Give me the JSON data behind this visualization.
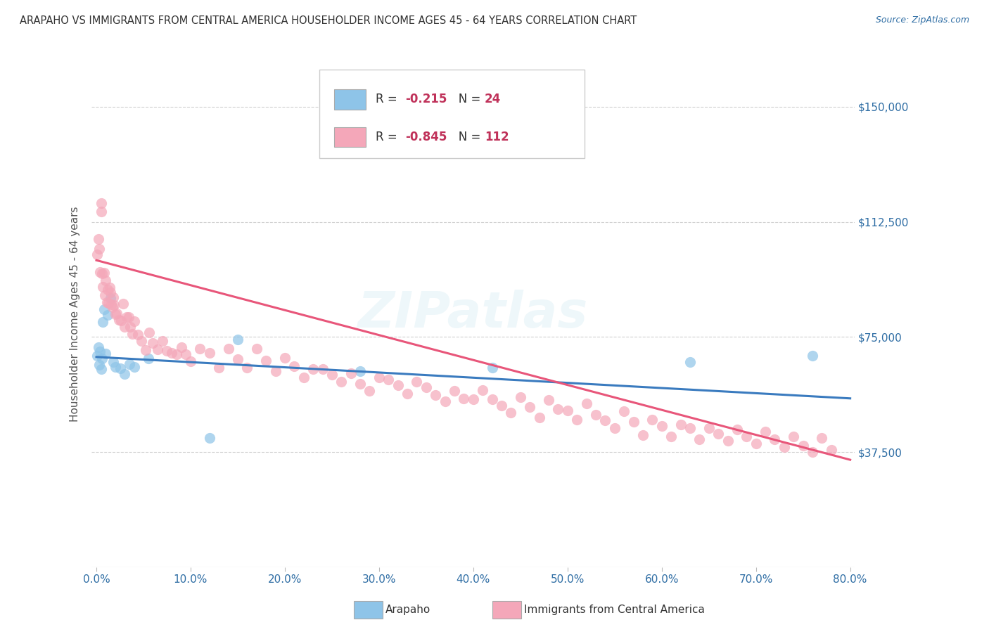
{
  "title": "ARAPAHO VS IMMIGRANTS FROM CENTRAL AMERICA HOUSEHOLDER INCOME AGES 45 - 64 YEARS CORRELATION CHART",
  "source": "Source: ZipAtlas.com",
  "ylabel": "Householder Income Ages 45 - 64 years",
  "ytick_labels": [
    "$37,500",
    "$75,000",
    "$112,500",
    "$150,000"
  ],
  "ytick_values": [
    37500,
    75000,
    112500,
    150000
  ],
  "xlim": [
    -0.005,
    0.805
  ],
  "ylim": [
    0,
    165000
  ],
  "legend_label1": "Arapaho",
  "legend_label2": "Immigrants from Central America",
  "r1": "-0.215",
  "n1": "24",
  "r2": "-0.845",
  "n2": "112",
  "color_blue": "#8ec4e8",
  "color_pink": "#f4a7b9",
  "color_blue_line": "#3a7bbf",
  "color_pink_line": "#e8567a",
  "color_text_blue": "#2e6da4",
  "color_r_value": "#c0325a",
  "background_color": "#ffffff",
  "grid_color": "#d0d0d0",
  "watermark": "ZIPatlas",
  "arapaho_x": [
    0.001,
    0.002,
    0.003,
    0.004,
    0.005,
    0.006,
    0.007,
    0.008,
    0.01,
    0.012,
    0.015,
    0.018,
    0.02,
    0.025,
    0.03,
    0.035,
    0.04,
    0.055,
    0.12,
    0.15,
    0.28,
    0.42,
    0.63,
    0.76
  ],
  "arapaho_y": [
    68000,
    72000,
    66000,
    70000,
    65000,
    68000,
    80000,
    85000,
    69000,
    82000,
    88000,
    67000,
    65000,
    65000,
    63000,
    67000,
    65000,
    68000,
    42000,
    75000,
    63000,
    65000,
    67000,
    68000
  ],
  "imm_x": [
    0.001,
    0.002,
    0.003,
    0.004,
    0.005,
    0.006,
    0.007,
    0.008,
    0.009,
    0.01,
    0.011,
    0.012,
    0.013,
    0.014,
    0.015,
    0.016,
    0.017,
    0.018,
    0.019,
    0.02,
    0.022,
    0.024,
    0.026,
    0.028,
    0.03,
    0.032,
    0.034,
    0.036,
    0.038,
    0.04,
    0.044,
    0.048,
    0.052,
    0.056,
    0.06,
    0.065,
    0.07,
    0.075,
    0.08,
    0.085,
    0.09,
    0.095,
    0.1,
    0.11,
    0.12,
    0.13,
    0.14,
    0.15,
    0.16,
    0.17,
    0.18,
    0.19,
    0.2,
    0.21,
    0.22,
    0.23,
    0.24,
    0.25,
    0.26,
    0.27,
    0.28,
    0.29,
    0.3,
    0.31,
    0.32,
    0.33,
    0.34,
    0.35,
    0.36,
    0.37,
    0.38,
    0.39,
    0.4,
    0.41,
    0.42,
    0.43,
    0.44,
    0.45,
    0.46,
    0.47,
    0.48,
    0.49,
    0.5,
    0.51,
    0.52,
    0.53,
    0.54,
    0.55,
    0.56,
    0.57,
    0.58,
    0.59,
    0.6,
    0.61,
    0.62,
    0.63,
    0.64,
    0.65,
    0.66,
    0.67,
    0.68,
    0.69,
    0.7,
    0.71,
    0.72,
    0.73,
    0.74,
    0.75,
    0.76,
    0.77,
    0.78,
    0.005
  ],
  "imm_y": [
    102000,
    108000,
    104000,
    98000,
    115000,
    96000,
    92000,
    95000,
    90000,
    93000,
    88000,
    91000,
    87000,
    90000,
    88000,
    86000,
    84000,
    88000,
    85000,
    83000,
    84000,
    82000,
    80000,
    84000,
    78000,
    82000,
    80000,
    78000,
    76000,
    80000,
    76000,
    74000,
    72000,
    76000,
    73000,
    70000,
    74000,
    72000,
    70000,
    68000,
    72000,
    70000,
    68000,
    72000,
    70000,
    66000,
    70000,
    68000,
    65000,
    70000,
    66000,
    64000,
    68000,
    65000,
    62000,
    66000,
    64000,
    62000,
    60000,
    64000,
    60000,
    58000,
    62000,
    60000,
    58000,
    56000,
    60000,
    58000,
    56000,
    54000,
    58000,
    55000,
    53000,
    57000,
    55000,
    53000,
    51000,
    55000,
    52000,
    50000,
    54000,
    52000,
    50000,
    48000,
    52000,
    50000,
    48000,
    45000,
    50000,
    47000,
    44000,
    48000,
    46000,
    43000,
    47000,
    44000,
    42000,
    46000,
    43000,
    41000,
    45000,
    42000,
    40000,
    44000,
    41000,
    39000,
    43000,
    40000,
    38000,
    42000,
    39000,
    120000
  ]
}
